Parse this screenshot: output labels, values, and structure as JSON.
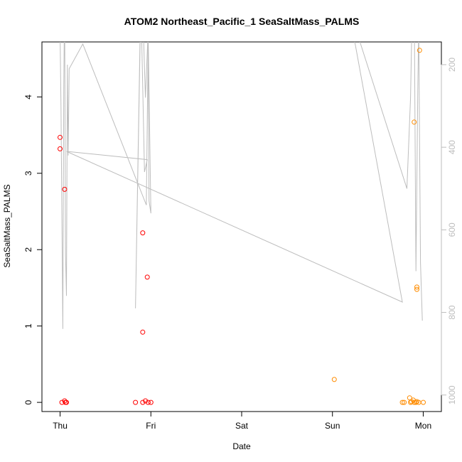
{
  "chart_data": {
    "type": "scatter",
    "title": "ATOM2 Northeast_Pacific_1 SeaSaltMass_PALMS",
    "xlabel": "Date",
    "ylabel": "SeaSaltMass_PALMS",
    "x_ticks": [
      "Thu",
      "Fri",
      "Sat",
      "Sun",
      "Mon"
    ],
    "x_tick_values": [
      0,
      1,
      2,
      3,
      4
    ],
    "xlim": [
      -0.2,
      4.2
    ],
    "ylim": [
      -0.12,
      4.72
    ],
    "y_ticks": [
      0,
      1,
      2,
      3,
      4
    ],
    "right_axis": {
      "ticks": [
        200,
        400,
        600,
        800,
        1000
      ],
      "ylim": [
        1040,
        145
      ],
      "reversed": true,
      "color": "#bdbdbd"
    },
    "grid": false,
    "series": [
      {
        "color": "#ff0000",
        "points": [
          [
            0.0,
            3.47
          ],
          [
            0.0,
            3.32
          ],
          [
            0.05,
            2.79
          ],
          [
            0.02,
            0.0
          ],
          [
            0.05,
            0.02
          ],
          [
            0.06,
            0.0
          ],
          [
            0.07,
            0.0
          ],
          [
            0.91,
            2.22
          ],
          [
            0.96,
            1.64
          ],
          [
            0.91,
            0.92
          ],
          [
            0.83,
            0.0
          ],
          [
            0.91,
            0.0
          ],
          [
            0.94,
            0.02
          ],
          [
            0.97,
            0.0
          ],
          [
            1.0,
            0.0
          ]
        ]
      },
      {
        "color": "#ff8c00",
        "points": [
          [
            3.96,
            4.61
          ],
          [
            3.9,
            3.67
          ],
          [
            3.93,
            1.51
          ],
          [
            3.93,
            1.48
          ],
          [
            3.02,
            0.3
          ],
          [
            3.77,
            0.0
          ],
          [
            3.79,
            0.0
          ],
          [
            3.85,
            0.06
          ],
          [
            3.86,
            0.0
          ],
          [
            3.87,
            0.01
          ],
          [
            3.89,
            0.03
          ],
          [
            3.9,
            0.0
          ],
          [
            3.92,
            0.0
          ],
          [
            3.93,
            0.01
          ],
          [
            3.95,
            0.0
          ],
          [
            4.0,
            0.0
          ]
        ]
      }
    ],
    "reference_line": {
      "color": "#bdbdbd",
      "axis": "right",
      "points": [
        [
          0.0,
          120
        ],
        [
          0.01,
          300
        ],
        [
          0.03,
          840
        ],
        [
          0.04,
          260
        ],
        [
          0.05,
          40
        ],
        [
          0.06,
          660
        ],
        [
          0.07,
          760
        ],
        [
          0.08,
          200
        ],
        [
          0.09,
          420
        ],
        [
          0.1,
          210
        ],
        [
          0.25,
          150
        ],
        [
          0.95,
          540
        ],
        [
          0.97,
          150
        ],
        [
          0.98,
          530
        ],
        [
          1.0,
          560
        ],
        [
          0.97,
          120
        ],
        [
          0.94,
          280
        ],
        [
          0.92,
          140
        ],
        [
          0.9,
          130
        ],
        [
          0.88,
          150
        ],
        [
          0.83,
          790
        ],
        [
          0.89,
          40
        ],
        [
          0.93,
          460
        ],
        [
          0.96,
          430
        ],
        [
          0.07,
          410
        ],
        [
          3.77,
          775
        ],
        [
          3.25,
          150
        ],
        [
          3.15,
          40
        ],
        [
          3.82,
          500
        ],
        [
          3.86,
          280
        ],
        [
          3.88,
          50
        ],
        [
          3.9,
          20
        ],
        [
          3.92,
          700
        ],
        [
          3.94,
          260
        ],
        [
          3.95,
          100
        ],
        [
          3.97,
          680
        ],
        [
          3.99,
          820
        ]
      ]
    }
  }
}
